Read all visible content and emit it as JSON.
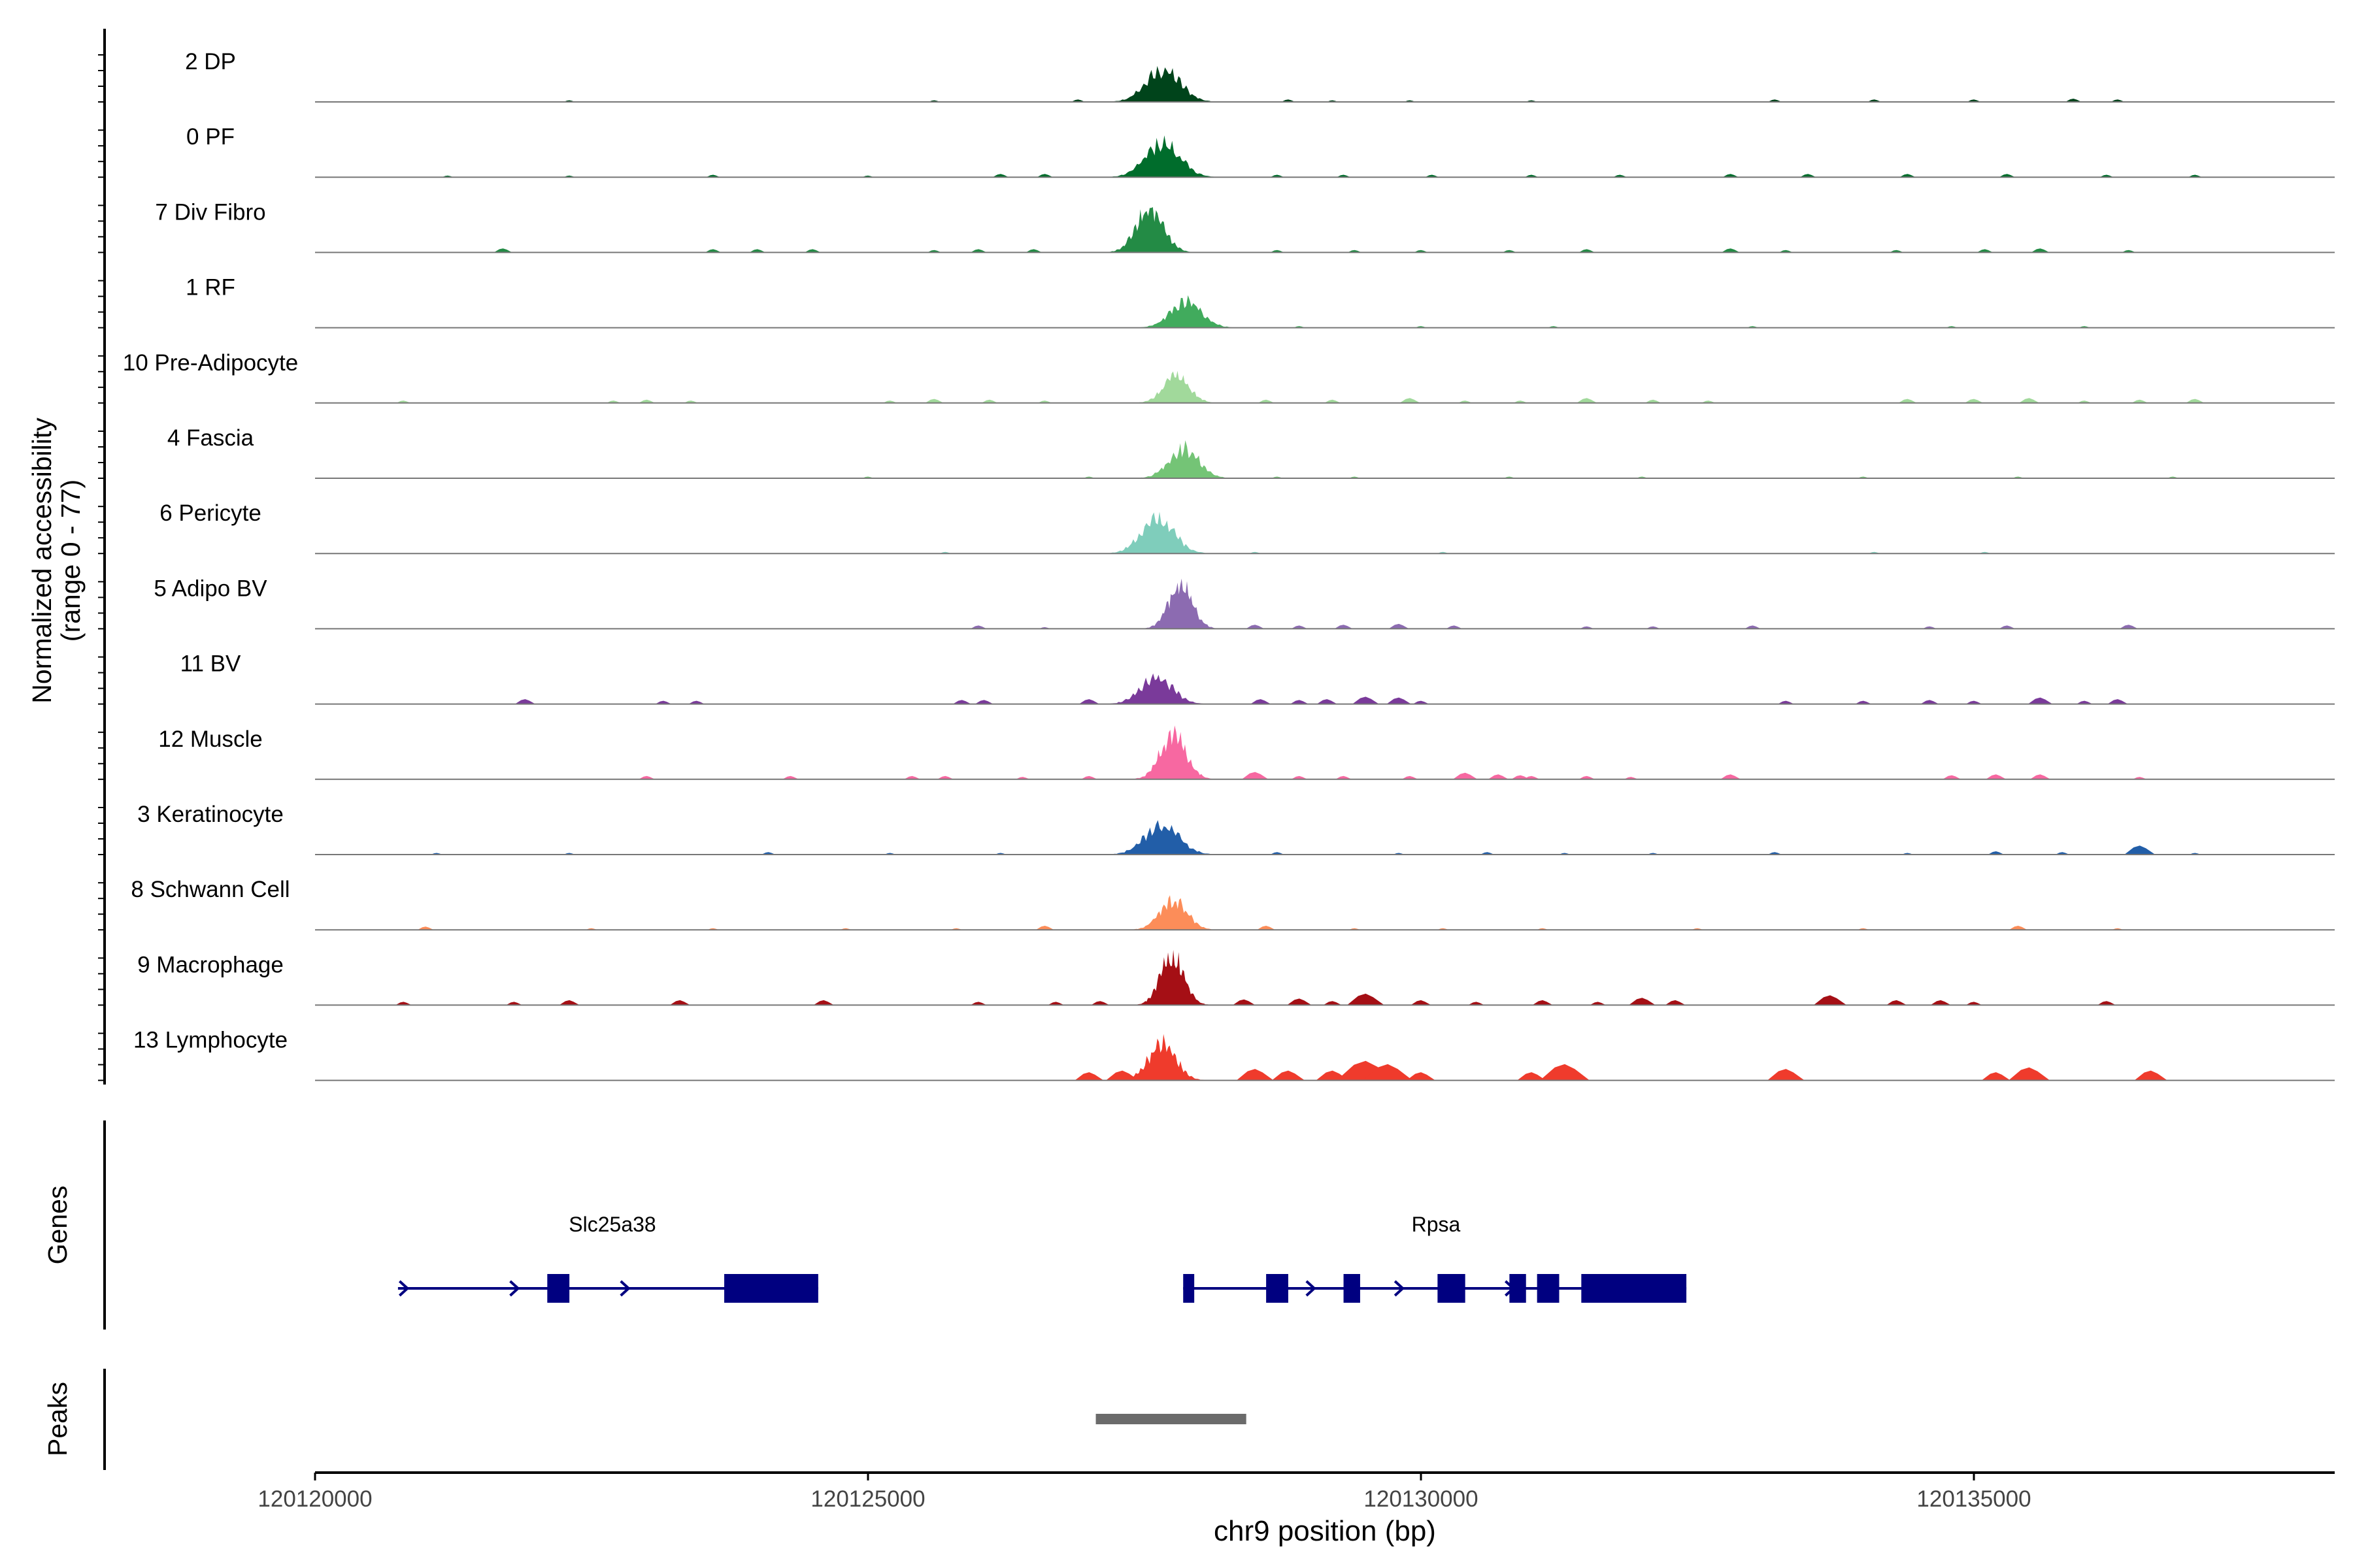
{
  "chart_data": {
    "type": "area",
    "title": "",
    "ylabel": "Normalized accessibility",
    "ylabel_range": "(range 0 - 77)",
    "xlabel": "chr9 position (bp)",
    "xlim": [
      120120000,
      120138300
    ],
    "ylim": [
      0,
      77
    ],
    "x_ticks": [
      120120000,
      120125000,
      120130000,
      120135000
    ],
    "x_tick_labels": [
      "120120000",
      "120125000",
      "120130000",
      "120135000"
    ],
    "grid": false,
    "tracks": [
      {
        "name": "2 DP",
        "color": "#00441b",
        "peak_height": 52,
        "peaks": [
          [
            120127090,
            120128350,
            52
          ]
        ],
        "noise": [
          [
            120122300,
            2
          ],
          [
            120125600,
            2
          ],
          [
            120126900,
            3
          ],
          [
            120128800,
            3
          ],
          [
            120129200,
            2
          ],
          [
            120129900,
            2
          ],
          [
            120131000,
            2
          ],
          [
            120133200,
            3
          ],
          [
            120134100,
            3
          ],
          [
            120135000,
            3
          ],
          [
            120135900,
            4
          ],
          [
            120136300,
            3
          ]
        ]
      },
      {
        "name": "0 PF",
        "color": "#006d2c",
        "peak_height": 55,
        "peaks": [
          [
            120127080,
            120128350,
            55
          ]
        ],
        "noise": [
          [
            120121200,
            2
          ],
          [
            120122300,
            2
          ],
          [
            120123600,
            3
          ],
          [
            120125000,
            2
          ],
          [
            120126200,
            4
          ],
          [
            120126600,
            4
          ],
          [
            120128700,
            3
          ],
          [
            120129300,
            3
          ],
          [
            120130100,
            3
          ],
          [
            120131000,
            3
          ],
          [
            120131800,
            3
          ],
          [
            120132800,
            4
          ],
          [
            120133500,
            4
          ],
          [
            120134400,
            4
          ],
          [
            120135300,
            4
          ],
          [
            120136200,
            3
          ],
          [
            120137000,
            3
          ]
        ]
      },
      {
        "name": "7 Div Fibro",
        "color": "#238b45",
        "peak_height": 70,
        "peaks": [
          [
            120127080,
            120128100,
            70
          ]
        ],
        "noise": [
          [
            120121700,
            5
          ],
          [
            120123600,
            4
          ],
          [
            120124000,
            4
          ],
          [
            120124500,
            4
          ],
          [
            120125600,
            3
          ],
          [
            120126000,
            4
          ],
          [
            120126500,
            4
          ],
          [
            120128700,
            3
          ],
          [
            120129400,
            3
          ],
          [
            120130000,
            3
          ],
          [
            120130800,
            3
          ],
          [
            120131500,
            4
          ],
          [
            120132800,
            5
          ],
          [
            120133300,
            3
          ],
          [
            120134300,
            3
          ],
          [
            120135100,
            4
          ],
          [
            120135600,
            5
          ],
          [
            120136400,
            3
          ]
        ]
      },
      {
        "name": "1 RF",
        "color": "#41ab5d",
        "peak_height": 42,
        "peaks": [
          [
            120127350,
            120128500,
            42
          ]
        ],
        "noise": [
          [
            120128900,
            2
          ],
          [
            120130000,
            2
          ],
          [
            120131200,
            2
          ],
          [
            120133000,
            2
          ],
          [
            120134800,
            2
          ],
          [
            120136000,
            2
          ]
        ]
      },
      {
        "name": "10 Pre-Adipocyte",
        "color": "#a1d99b",
        "peak_height": 44,
        "peaks": [
          [
            120127350,
            120128300,
            44
          ]
        ],
        "noise": [
          [
            120120800,
            3
          ],
          [
            120122700,
            3
          ],
          [
            120123000,
            4
          ],
          [
            120123400,
            3
          ],
          [
            120125200,
            3
          ],
          [
            120125600,
            5
          ],
          [
            120126100,
            4
          ],
          [
            120126600,
            3
          ],
          [
            120128600,
            4
          ],
          [
            120129200,
            4
          ],
          [
            120129900,
            6
          ],
          [
            120130400,
            3
          ],
          [
            120130900,
            3
          ],
          [
            120131500,
            6
          ],
          [
            120132100,
            4
          ],
          [
            120132600,
            3
          ],
          [
            120134400,
            5
          ],
          [
            120135000,
            5
          ],
          [
            120135500,
            6
          ],
          [
            120136000,
            3
          ],
          [
            120136500,
            4
          ],
          [
            120137000,
            5
          ]
        ]
      },
      {
        "name": "4 Fascia",
        "color": "#74c476",
        "peak_height": 48,
        "peaks": [
          [
            120127350,
            120128450,
            48
          ]
        ],
        "noise": [
          [
            120125000,
            2
          ],
          [
            120127000,
            2
          ],
          [
            120128700,
            2
          ],
          [
            120129400,
            2
          ],
          [
            120130800,
            2
          ],
          [
            120132000,
            2
          ],
          [
            120134000,
            2
          ],
          [
            120135400,
            2
          ],
          [
            120136800,
            2
          ]
        ]
      },
      {
        "name": "6 Pericyte",
        "color": "#7fcdbb",
        "peak_height": 56,
        "peaks": [
          [
            120127060,
            120128280,
            56
          ]
        ],
        "noise": [
          [
            120125700,
            2
          ],
          [
            120128500,
            2
          ],
          [
            120130200,
            2
          ],
          [
            120134100,
            2
          ],
          [
            120135100,
            2
          ]
        ]
      },
      {
        "name": "5 Adipo BV",
        "color": "#8c6bb1",
        "peak_height": 70,
        "peaks": [
          [
            120127420,
            120128300,
            70
          ]
        ],
        "noise": [
          [
            120126000,
            4
          ],
          [
            120126600,
            2
          ],
          [
            120128500,
            5
          ],
          [
            120128900,
            4
          ],
          [
            120129300,
            5
          ],
          [
            120129800,
            6
          ],
          [
            120130300,
            4
          ],
          [
            120131500,
            3
          ],
          [
            120132100,
            3
          ],
          [
            120133000,
            4
          ],
          [
            120134600,
            3
          ],
          [
            120135300,
            4
          ],
          [
            120136400,
            5
          ]
        ]
      },
      {
        "name": "11 BV",
        "color": "#7a3a9a",
        "peak_height": 42,
        "peaks": [
          [
            120127070,
            120128250,
            42
          ]
        ],
        "noise": [
          [
            120121900,
            6
          ],
          [
            120123150,
            4
          ],
          [
            120123450,
            4
          ],
          [
            120125850,
            5
          ],
          [
            120126050,
            5
          ],
          [
            120127000,
            6
          ],
          [
            120128550,
            6
          ],
          [
            120128900,
            5
          ],
          [
            120129150,
            6
          ],
          [
            120129500,
            9
          ],
          [
            120129800,
            8
          ],
          [
            120130000,
            4
          ],
          [
            120133300,
            4
          ],
          [
            120134000,
            4
          ],
          [
            120134600,
            5
          ],
          [
            120135000,
            4
          ],
          [
            120135600,
            8
          ],
          [
            120136000,
            4
          ],
          [
            120136300,
            6
          ]
        ]
      },
      {
        "name": "12 Muscle",
        "color": "#f768a1",
        "peak_height": 70,
        "peaks": [
          [
            120127320,
            120128280,
            70
          ]
        ],
        "noise": [
          [
            120123000,
            4
          ],
          [
            120124300,
            4
          ],
          [
            120125400,
            4
          ],
          [
            120125700,
            4
          ],
          [
            120126400,
            3
          ],
          [
            120127000,
            4
          ],
          [
            120128500,
            9
          ],
          [
            120128900,
            4
          ],
          [
            120129300,
            4
          ],
          [
            120129900,
            4
          ],
          [
            120130400,
            8
          ],
          [
            120130700,
            6
          ],
          [
            120130900,
            5
          ],
          [
            120131000,
            4
          ],
          [
            120131500,
            4
          ],
          [
            120131900,
            3
          ],
          [
            120132800,
            6
          ],
          [
            120134800,
            5
          ],
          [
            120135200,
            6
          ],
          [
            120135600,
            6
          ],
          [
            120136500,
            3
          ]
        ]
      },
      {
        "name": "3 Keratinocyte",
        "color": "#225ea8",
        "peak_height": 48,
        "peaks": [
          [
            120127070,
            120128350,
            48
          ]
        ],
        "noise": [
          [
            120121100,
            2
          ],
          [
            120122300,
            2
          ],
          [
            120124100,
            3
          ],
          [
            120125200,
            2
          ],
          [
            120126200,
            2
          ],
          [
            120128700,
            3
          ],
          [
            120129800,
            2
          ],
          [
            120130600,
            3
          ],
          [
            120131300,
            2
          ],
          [
            120132100,
            2
          ],
          [
            120133200,
            3
          ],
          [
            120134400,
            2
          ],
          [
            120135200,
            4
          ],
          [
            120135800,
            3
          ],
          [
            120136500,
            11
          ],
          [
            120137000,
            2
          ]
        ]
      },
      {
        "name": "8 Schwann Cell",
        "color": "#fc8d59",
        "peak_height": 48,
        "peaks": [
          [
            120127300,
            120128300,
            48
          ]
        ],
        "noise": [
          [
            120121000,
            4
          ],
          [
            120122500,
            2
          ],
          [
            120123600,
            2
          ],
          [
            120124800,
            2
          ],
          [
            120125800,
            2
          ],
          [
            120126600,
            5
          ],
          [
            120128600,
            5
          ],
          [
            120129400,
            2
          ],
          [
            120130200,
            2
          ],
          [
            120131100,
            2
          ],
          [
            120132500,
            2
          ],
          [
            120134000,
            2
          ],
          [
            120135400,
            5
          ],
          [
            120136300,
            2
          ]
        ]
      },
      {
        "name": "9 Macrophage",
        "color": "#a50f15",
        "peak_height": 77,
        "peaks": [
          [
            120127350,
            120128220,
            77
          ]
        ],
        "noise": [
          [
            120120800,
            4
          ],
          [
            120121800,
            4
          ],
          [
            120122300,
            6
          ],
          [
            120123300,
            6
          ],
          [
            120124600,
            6
          ],
          [
            120126000,
            4
          ],
          [
            120126700,
            4
          ],
          [
            120127100,
            5
          ],
          [
            120128400,
            7
          ],
          [
            120128900,
            8
          ],
          [
            120129200,
            5
          ],
          [
            120129500,
            14
          ],
          [
            120130000,
            6
          ],
          [
            120130500,
            4
          ],
          [
            120131100,
            6
          ],
          [
            120131600,
            4
          ],
          [
            120132000,
            9
          ],
          [
            120132300,
            6
          ],
          [
            120133700,
            12
          ],
          [
            120134300,
            6
          ],
          [
            120134700,
            6
          ],
          [
            120135000,
            4
          ],
          [
            120136200,
            5
          ]
        ]
      },
      {
        "name": "13 Lymphocyte",
        "color": "#ef3b2c",
        "peak_height": 60,
        "peaks": [
          [
            120127200,
            120128200,
            60
          ]
        ],
        "noise": [
          [
            120127000,
            10
          ],
          [
            120127300,
            12
          ],
          [
            120128500,
            14
          ],
          [
            120128800,
            12
          ],
          [
            120129200,
            12
          ],
          [
            120129500,
            24
          ],
          [
            120129700,
            20
          ],
          [
            120130000,
            10
          ],
          [
            120131000,
            10
          ],
          [
            120131300,
            20
          ],
          [
            120133300,
            14
          ],
          [
            120135200,
            10
          ],
          [
            120135500,
            16
          ],
          [
            120136600,
            12
          ]
        ]
      }
    ],
    "genes": {
      "label": "Genes",
      "items": [
        {
          "name": "Slc25a38",
          "start": 120120750,
          "end": 120124550,
          "exons": [
            [
              120122100,
              120122300
            ],
            [
              120123700,
              120124550
            ]
          ],
          "arrows": [
            120120800,
            120121800,
            120122800
          ]
        },
        {
          "name": "Rpsa",
          "start": 120127850,
          "end": 120132400,
          "exons": [
            [
              120127850,
              120127950
            ],
            [
              120128600,
              120128800
            ],
            [
              120129300,
              120129450
            ],
            [
              120130150,
              120130400
            ],
            [
              120130800,
              120130950
            ],
            [
              120131050,
              120131250
            ],
            [
              120131450,
              120132400
            ]
          ],
          "arrows": [
            120127900,
            120129000,
            120129800,
            120130800
          ]
        }
      ]
    },
    "peaks_track": {
      "label": "Peaks",
      "regions": [
        [
          120127060,
          120128420
        ]
      ]
    }
  }
}
